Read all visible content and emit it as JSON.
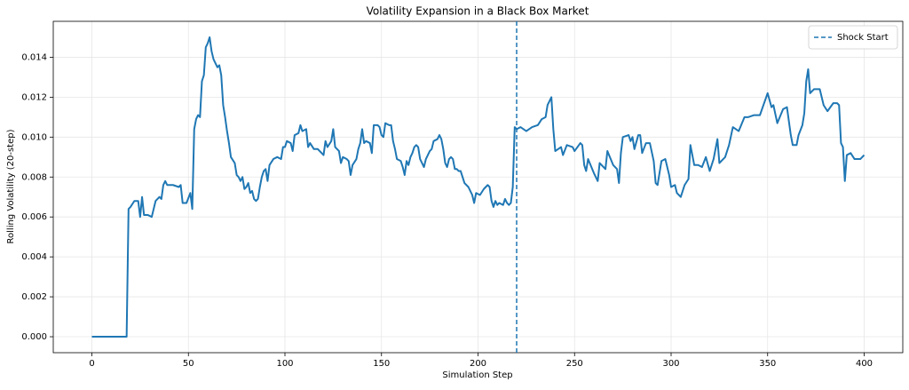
{
  "chart_data": {
    "type": "line",
    "title": "Volatility Expansion in a Black Box Market",
    "xlabel": "Simulation Step",
    "ylabel": "Rolling Volatility (20-step)",
    "x": [
      0,
      18,
      19,
      20,
      22,
      24,
      25,
      26,
      27,
      29,
      31,
      33,
      35,
      36,
      37,
      38,
      39,
      42,
      45,
      46,
      47,
      49,
      51,
      52,
      53,
      54,
      55,
      56,
      57,
      58,
      59,
      60,
      61,
      62,
      63,
      64,
      65,
      66,
      67,
      68,
      69,
      70,
      71,
      72,
      74,
      75,
      76,
      77,
      78,
      79,
      80,
      81,
      82,
      83,
      84,
      85,
      86,
      87,
      88,
      89,
      90,
      91,
      92,
      94,
      96,
      98,
      99,
      100,
      101,
      103,
      104,
      105,
      107,
      108,
      109,
      111,
      112,
      113,
      115,
      117,
      119,
      120,
      121,
      122,
      124,
      125,
      126,
      128,
      129,
      130,
      132,
      133,
      134,
      135,
      137,
      138,
      139,
      140,
      141,
      142,
      144,
      145,
      146,
      148,
      149,
      150,
      151,
      152,
      154,
      155,
      156,
      157,
      158,
      160,
      161,
      162,
      163,
      164,
      165,
      166,
      167,
      168,
      169,
      170,
      171,
      172,
      173,
      175,
      176,
      177,
      179,
      180,
      181,
      182,
      183,
      184,
      185,
      186,
      187,
      188,
      189,
      190,
      191,
      193,
      195,
      197,
      198,
      199,
      201,
      203,
      205,
      206,
      207,
      208,
      209,
      210,
      211,
      213,
      214,
      215,
      216,
      217,
      218,
      219,
      220,
      222,
      225,
      228,
      231,
      233,
      235,
      236,
      238,
      239,
      240,
      243,
      244,
      246,
      249,
      250,
      253,
      254,
      255,
      256,
      257,
      260,
      262,
      263,
      266,
      267,
      270,
      272,
      273,
      274,
      275,
      278,
      279,
      280,
      281,
      283,
      284,
      285,
      287,
      289,
      291,
      292,
      293,
      295,
      297,
      299,
      300,
      302,
      303,
      305,
      307,
      309,
      310,
      312,
      314,
      316,
      318,
      320,
      322,
      324,
      325,
      328,
      330,
      332,
      335,
      338,
      340,
      343,
      346,
      350,
      352,
      353,
      355,
      358,
      360,
      362,
      363,
      365,
      366,
      368,
      369,
      370,
      371,
      372,
      374,
      377,
      379,
      381,
      384,
      386,
      387,
      388,
      389,
      390,
      391,
      393,
      395,
      398,
      400
    ],
    "series": [
      {
        "color": "#1f77b4",
        "values": [
          0,
          0,
          0.0064,
          0.0065,
          0.0068,
          0.0068,
          0.006,
          0.007,
          0.0061,
          0.0061,
          0.006,
          0.0068,
          0.007,
          0.0069,
          0.0076,
          0.0078,
          0.0076,
          0.0076,
          0.0075,
          0.0076,
          0.0067,
          0.0067,
          0.0072,
          0.0064,
          0.0104,
          0.0109,
          0.0111,
          0.011,
          0.0128,
          0.0131,
          0.0145,
          0.0147,
          0.015,
          0.0143,
          0.0139,
          0.0137,
          0.0135,
          0.0136,
          0.0131,
          0.0116,
          0.011,
          0.0103,
          0.0097,
          0.009,
          0.0087,
          0.0081,
          0.008,
          0.0078,
          0.008,
          0.0074,
          0.0075,
          0.0077,
          0.0072,
          0.0073,
          0.0069,
          0.0068,
          0.0069,
          0.0075,
          0.008,
          0.0083,
          0.0084,
          0.0078,
          0.0086,
          0.0089,
          0.009,
          0.0089,
          0.0095,
          0.0095,
          0.0098,
          0.0097,
          0.0093,
          0.0101,
          0.0102,
          0.0106,
          0.0103,
          0.0104,
          0.0095,
          0.0097,
          0.0094,
          0.0094,
          0.0092,
          0.0091,
          0.0098,
          0.0095,
          0.0098,
          0.0104,
          0.0095,
          0.0093,
          0.0087,
          0.009,
          0.0089,
          0.0088,
          0.0081,
          0.0086,
          0.0089,
          0.0094,
          0.0097,
          0.0104,
          0.0097,
          0.0098,
          0.0097,
          0.0092,
          0.0106,
          0.0106,
          0.0105,
          0.0101,
          0.01,
          0.0107,
          0.0106,
          0.0106,
          0.0098,
          0.0094,
          0.0089,
          0.0088,
          0.0085,
          0.0081,
          0.0088,
          0.0086,
          0.009,
          0.0092,
          0.0095,
          0.0096,
          0.0095,
          0.0089,
          0.0087,
          0.0085,
          0.0089,
          0.0093,
          0.0094,
          0.0098,
          0.0099,
          0.0101,
          0.0099,
          0.0094,
          0.0087,
          0.0085,
          0.0089,
          0.009,
          0.0089,
          0.0084,
          0.0084,
          0.0083,
          0.0083,
          0.0077,
          0.0075,
          0.0071,
          0.0067,
          0.0072,
          0.0071,
          0.0074,
          0.0076,
          0.0075,
          0.0068,
          0.0065,
          0.0068,
          0.0066,
          0.0067,
          0.0066,
          0.0069,
          0.0067,
          0.0066,
          0.0067,
          0.0075,
          0.0105,
          0.0104,
          0.0105,
          0.0103,
          0.0105,
          0.0106,
          0.0109,
          0.011,
          0.0116,
          0.012,
          0.0104,
          0.0093,
          0.0095,
          0.0091,
          0.0096,
          0.0095,
          0.0093,
          0.0097,
          0.0096,
          0.0086,
          0.0083,
          0.0089,
          0.0082,
          0.0078,
          0.0087,
          0.0084,
          0.0093,
          0.0086,
          0.0084,
          0.0077,
          0.0092,
          0.01,
          0.0101,
          0.0098,
          0.01,
          0.0094,
          0.0101,
          0.0101,
          0.0092,
          0.0097,
          0.0097,
          0.0088,
          0.0077,
          0.0076,
          0.0088,
          0.0089,
          0.0081,
          0.0075,
          0.0076,
          0.0072,
          0.007,
          0.0076,
          0.0079,
          0.0096,
          0.0086,
          0.0086,
          0.0085,
          0.009,
          0.0083,
          0.0089,
          0.0099,
          0.0087,
          0.009,
          0.0096,
          0.0105,
          0.0103,
          0.011,
          0.011,
          0.0111,
          0.0111,
          0.0122,
          0.0115,
          0.0116,
          0.0107,
          0.0114,
          0.0115,
          0.0101,
          0.0096,
          0.0096,
          0.0101,
          0.0106,
          0.0112,
          0.0128,
          0.0134,
          0.0122,
          0.0124,
          0.0124,
          0.0116,
          0.0113,
          0.0117,
          0.0117,
          0.0116,
          0.0097,
          0.0095,
          0.0078,
          0.0091,
          0.0092,
          0.0089,
          0.0089,
          0.0091
        ]
      }
    ],
    "vlines": [
      {
        "x": 220,
        "name": "Shock Start",
        "color": "#1f77b4",
        "style": "dashed"
      }
    ],
    "xlim": [
      -20,
      420
    ],
    "xticks": [
      0,
      50,
      100,
      150,
      200,
      250,
      300,
      350,
      400
    ],
    "ylim": [
      -0.0008,
      0.0158
    ],
    "yticks": [
      {
        "value": 0,
        "label": "0.000"
      },
      0.002,
      0.004,
      0.006,
      0.008,
      {
        "value": 0.01,
        "label": "0.010"
      },
      0.012,
      0.014
    ],
    "grid": true,
    "legend": "upper right"
  }
}
